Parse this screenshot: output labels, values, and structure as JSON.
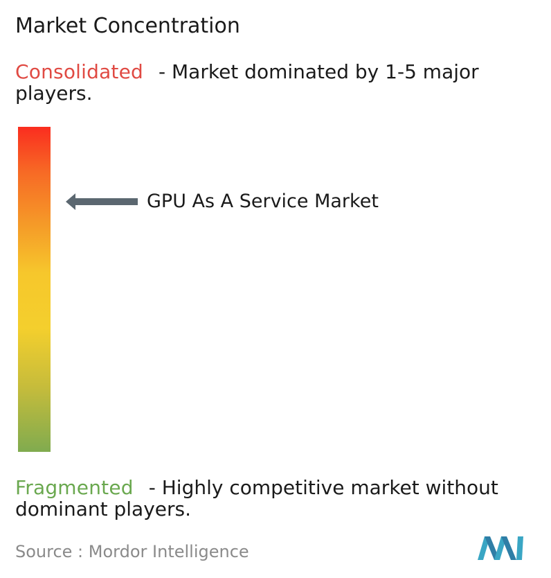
{
  "title": "Market Concentration",
  "consolidated": {
    "keyword": "Consolidated",
    "description": "- Market dominated by 1-5 major players.",
    "color": "#e04a43"
  },
  "fragmented": {
    "keyword": "Fragmented",
    "description": "- Highly competitive market without dominant players.",
    "color": "#6aa84f"
  },
  "marker": {
    "label": "GPU As A Service Market",
    "arrow_color": "#5b6770"
  },
  "source": "Source :  Mordor Intelligence",
  "chart_data": {
    "type": "bar",
    "title": "Market Concentration",
    "scale": {
      "top": "Consolidated",
      "bottom": "Fragmented",
      "gradient_colors": [
        "#fa2d1f",
        "#f59a28",
        "#f4cf2d",
        "#80ab4f"
      ]
    },
    "categories": [
      "GPU As A Service Market"
    ],
    "values": [
      0.23
    ],
    "ylim": [
      0,
      1
    ]
  }
}
